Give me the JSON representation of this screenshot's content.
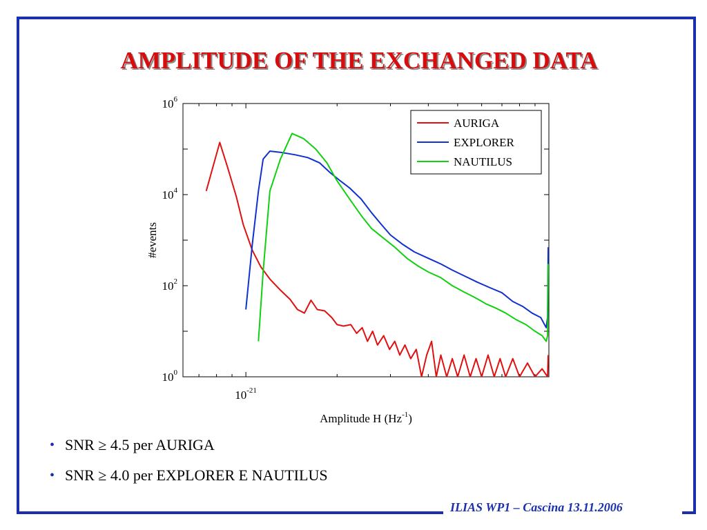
{
  "slide": {
    "title": "AMPLITUDE OF THE EXCHANGED DATA",
    "bullets": [
      "SNR ≥ 4.5 per AURIGA",
      "SNR ≥ 4.0 per EXPLORER E NAUTILUS"
    ],
    "footer": "ILIAS WP1 – Cascina 13.11.2006",
    "colors": {
      "frame": "#1a2fb0",
      "title": "#d80c0c"
    }
  },
  "chart_data": {
    "type": "line",
    "xlabel": {
      "base": "Amplitude H (Hz",
      "sup": "-1",
      "tail": ")"
    },
    "ylabel": "#events",
    "x_scale": "log",
    "y_scale": "log",
    "xlim": [
      6.2e-22,
      1e-20
    ],
    "ylim": [
      1,
      1000000
    ],
    "x_tick_label": {
      "value": 1e-21,
      "base": "10",
      "sup": "-21"
    },
    "y_tick_labels": [
      {
        "value": 1,
        "base": "10",
        "sup": "0"
      },
      {
        "value": 100,
        "base": "10",
        "sup": "2"
      },
      {
        "value": 10000,
        "base": "10",
        "sup": "4"
      },
      {
        "value": 1000000,
        "base": "10",
        "sup": "6"
      }
    ],
    "legend_position": "top-right",
    "grid": false,
    "series": [
      {
        "name": "AURIGA",
        "color": "#e01010",
        "points": [
          [
            7.4e-22,
            12000
          ],
          [
            8.2e-22,
            140000
          ],
          [
            8.7e-22,
            40000
          ],
          [
            9.3e-22,
            9000
          ],
          [
            9.8e-22,
            2200
          ],
          [
            1.05e-21,
            600
          ],
          [
            1.12e-21,
            260
          ],
          [
            1.2e-21,
            140
          ],
          [
            1.3e-21,
            80
          ],
          [
            1.4e-21,
            50
          ],
          [
            1.48e-21,
            30
          ],
          [
            1.56e-21,
            25
          ],
          [
            1.64e-21,
            48
          ],
          [
            1.72e-21,
            30
          ],
          [
            1.82e-21,
            28
          ],
          [
            1.92e-21,
            20
          ],
          [
            2e-21,
            14
          ],
          [
            2.1e-21,
            13
          ],
          [
            2.22e-21,
            14
          ],
          [
            2.32e-21,
            9
          ],
          [
            2.42e-21,
            12
          ],
          [
            2.52e-21,
            6
          ],
          [
            2.62e-21,
            10
          ],
          [
            2.72e-21,
            5
          ],
          [
            2.85e-21,
            8
          ],
          [
            2.98e-21,
            4
          ],
          [
            3.1e-21,
            6
          ],
          [
            3.22e-21,
            3
          ],
          [
            3.35e-21,
            5
          ],
          [
            3.5e-21,
            2.5
          ],
          [
            3.65e-21,
            4
          ],
          [
            3.8e-21,
            1
          ],
          [
            3.95e-21,
            3
          ],
          [
            4.1e-21,
            6
          ],
          [
            4.25e-21,
            1
          ],
          [
            4.4e-21,
            3
          ],
          [
            4.6e-21,
            1
          ],
          [
            4.8e-21,
            2.5
          ],
          [
            5e-21,
            1
          ],
          [
            5.25e-21,
            3
          ],
          [
            5.5e-21,
            1
          ],
          [
            5.75e-21,
            2.5
          ],
          [
            6e-21,
            1
          ],
          [
            6.3e-21,
            3
          ],
          [
            6.6e-21,
            1
          ],
          [
            6.9e-21,
            2.5
          ],
          [
            7.2e-21,
            1
          ],
          [
            7.6e-21,
            2.5
          ],
          [
            8e-21,
            1
          ],
          [
            8.5e-21,
            2
          ],
          [
            9e-21,
            1
          ],
          [
            9.5e-21,
            1.5
          ],
          [
            9.9e-21,
            1
          ],
          [
            9.95e-21,
            3
          ]
        ]
      },
      {
        "name": "EXPLORER",
        "color": "#1030d0",
        "points": [
          [
            1e-21,
            30
          ],
          [
            1.05e-21,
            800
          ],
          [
            1.1e-21,
            12000
          ],
          [
            1.14e-21,
            60000
          ],
          [
            1.2e-21,
            90000
          ],
          [
            1.3e-21,
            85000
          ],
          [
            1.45e-21,
            75000
          ],
          [
            1.6e-21,
            65000
          ],
          [
            1.75e-21,
            50000
          ],
          [
            1.9e-21,
            30000
          ],
          [
            2.05e-21,
            20000
          ],
          [
            2.2e-21,
            14000
          ],
          [
            2.4e-21,
            8000
          ],
          [
            2.6e-21,
            4000
          ],
          [
            2.8e-21,
            2200
          ],
          [
            3e-21,
            1300
          ],
          [
            3.3e-21,
            800
          ],
          [
            3.6e-21,
            550
          ],
          [
            4e-21,
            400
          ],
          [
            4.4e-21,
            300
          ],
          [
            4.8e-21,
            220
          ],
          [
            5.3e-21,
            160
          ],
          [
            5.8e-21,
            120
          ],
          [
            6.4e-21,
            90
          ],
          [
            7e-21,
            70
          ],
          [
            7.6e-21,
            45
          ],
          [
            8.2e-21,
            35
          ],
          [
            8.8e-21,
            25
          ],
          [
            9.4e-21,
            20
          ],
          [
            9.8e-21,
            12
          ],
          [
            9.9e-21,
            20
          ],
          [
            9.95e-21,
            700
          ]
        ]
      },
      {
        "name": "NAUTILUS",
        "color": "#10d010",
        "points": [
          [
            1.1e-21,
            6
          ],
          [
            1.14e-21,
            200
          ],
          [
            1.2e-21,
            12000
          ],
          [
            1.3e-21,
            60000
          ],
          [
            1.42e-21,
            220000
          ],
          [
            1.55e-21,
            170000
          ],
          [
            1.7e-21,
            100000
          ],
          [
            1.85e-21,
            50000
          ],
          [
            2e-21,
            20000
          ],
          [
            2.2e-21,
            8000
          ],
          [
            2.4e-21,
            3500
          ],
          [
            2.6e-21,
            1800
          ],
          [
            2.85e-21,
            1100
          ],
          [
            3.1e-21,
            700
          ],
          [
            3.4e-21,
            400
          ],
          [
            3.7e-21,
            270
          ],
          [
            4e-21,
            200
          ],
          [
            4.4e-21,
            150
          ],
          [
            4.8e-21,
            100
          ],
          [
            5.2e-21,
            75
          ],
          [
            5.7e-21,
            55
          ],
          [
            6.2e-21,
            40
          ],
          [
            6.7e-21,
            32
          ],
          [
            7.2e-21,
            25
          ],
          [
            7.8e-21,
            18
          ],
          [
            8.4e-21,
            14
          ],
          [
            9e-21,
            10
          ],
          [
            9.5e-21,
            8
          ],
          [
            9.8e-21,
            6
          ],
          [
            9.9e-21,
            8
          ],
          [
            9.95e-21,
            300
          ]
        ]
      }
    ]
  }
}
